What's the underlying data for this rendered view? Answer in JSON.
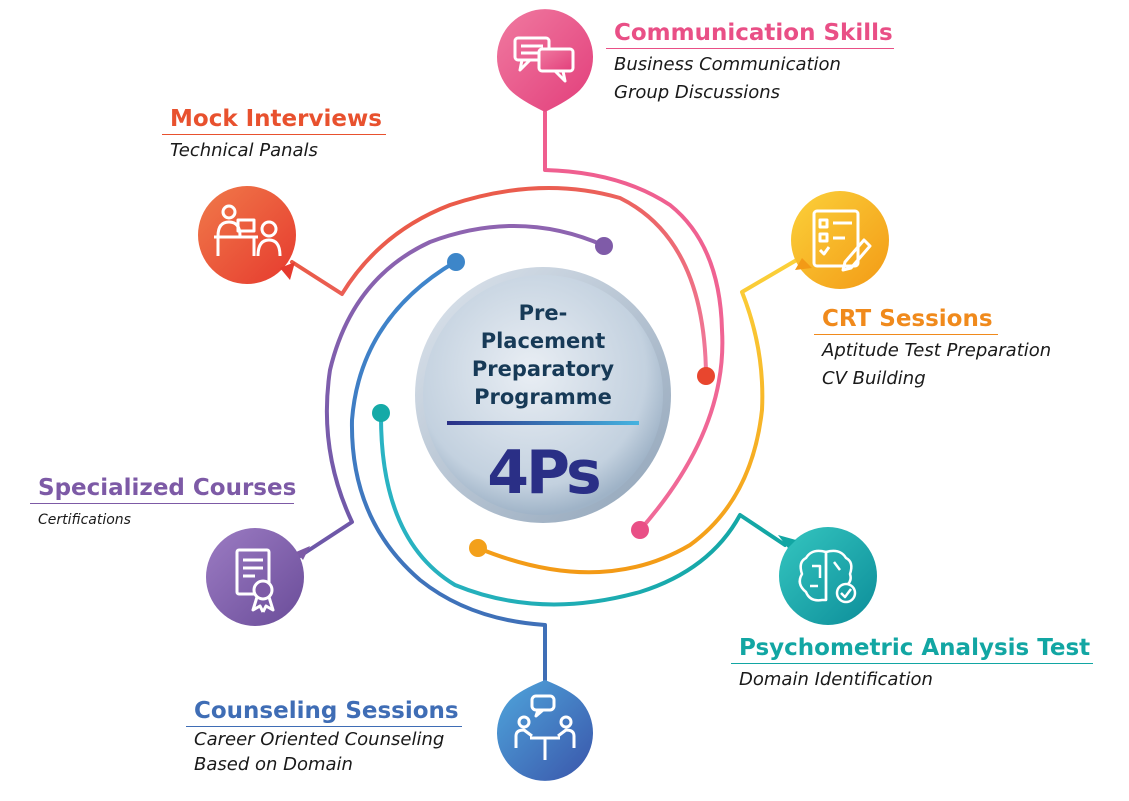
{
  "center": {
    "line1": "Pre-",
    "line2": "Placement",
    "line3": "Preparatory",
    "line4": "Programme",
    "big": "4Ps"
  },
  "nodes": [
    {
      "key": "communication",
      "title": "Communication Skills",
      "items": [
        "Business Communication",
        "Group Discussions"
      ],
      "color": "#e94f86",
      "icon": "chat-bubbles-icon"
    },
    {
      "key": "mock",
      "title": "Mock Interviews",
      "items": [
        "Technical Panals"
      ],
      "color": "#e8512e",
      "icon": "interview-desk-icon"
    },
    {
      "key": "crt",
      "title": "CRT Sessions",
      "items": [
        "Aptitude Test Preparation",
        "CV Building"
      ],
      "color": "#f08a1c",
      "icon": "checklist-icon"
    },
    {
      "key": "specialized",
      "title": "Specialized Courses",
      "items": [
        "Certifications"
      ],
      "color": "#7d5aa6",
      "icon": "certificate-icon"
    },
    {
      "key": "psychometric",
      "title": "Psychometric Analysis Test",
      "items": [
        "Domain Identification"
      ],
      "color": "#12a6a3",
      "icon": "brain-icon"
    },
    {
      "key": "counseling",
      "title": "Counseling Sessions",
      "items": [
        "Career Oriented Counseling",
        "Based on Domain"
      ],
      "color": "#3f6db5",
      "icon": "counseling-icon"
    }
  ]
}
